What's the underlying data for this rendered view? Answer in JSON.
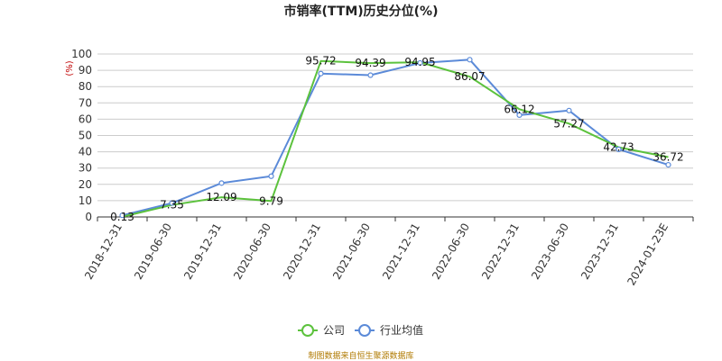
{
  "chart_data": {
    "type": "line",
    "title": "市销率(TTM)历史分位(%)",
    "unit_label": "(%)",
    "x": [
      "2018-12-31",
      "2019-06-30",
      "2019-12-31",
      "2020-06-30",
      "2020-12-31",
      "2021-06-30",
      "2021-12-31",
      "2022-06-30",
      "2022-12-31",
      "2023-06-30",
      "2023-12-31",
      "2024-01-23E"
    ],
    "ylim": [
      0,
      100
    ],
    "yticks": [
      0,
      10,
      20,
      30,
      40,
      50,
      60,
      70,
      80,
      90,
      100
    ],
    "grid": true,
    "legend_position": "bottom-center",
    "series": [
      {
        "name": "公司",
        "color": "#5cc23d",
        "values": [
          0.13,
          7.35,
          12.09,
          9.79,
          95.72,
          94.39,
          94.95,
          86.07,
          66.12,
          57.27,
          42.73,
          36.72
        ],
        "labels": [
          "0.13",
          "7.35",
          "12.09",
          "9.79",
          "95.72",
          "94.39",
          "94.95",
          "86.07",
          "66.12",
          "57.27",
          "42.73",
          "36.72"
        ]
      },
      {
        "name": "行业均值",
        "color": "#5b8ad8",
        "values": [
          1.0,
          8.5,
          20.8,
          25.0,
          88.0,
          87.0,
          94.5,
          96.5,
          62.5,
          65.3,
          41.5,
          32.0
        ]
      }
    ],
    "source": "制图数据来自恒生聚源数据库"
  }
}
